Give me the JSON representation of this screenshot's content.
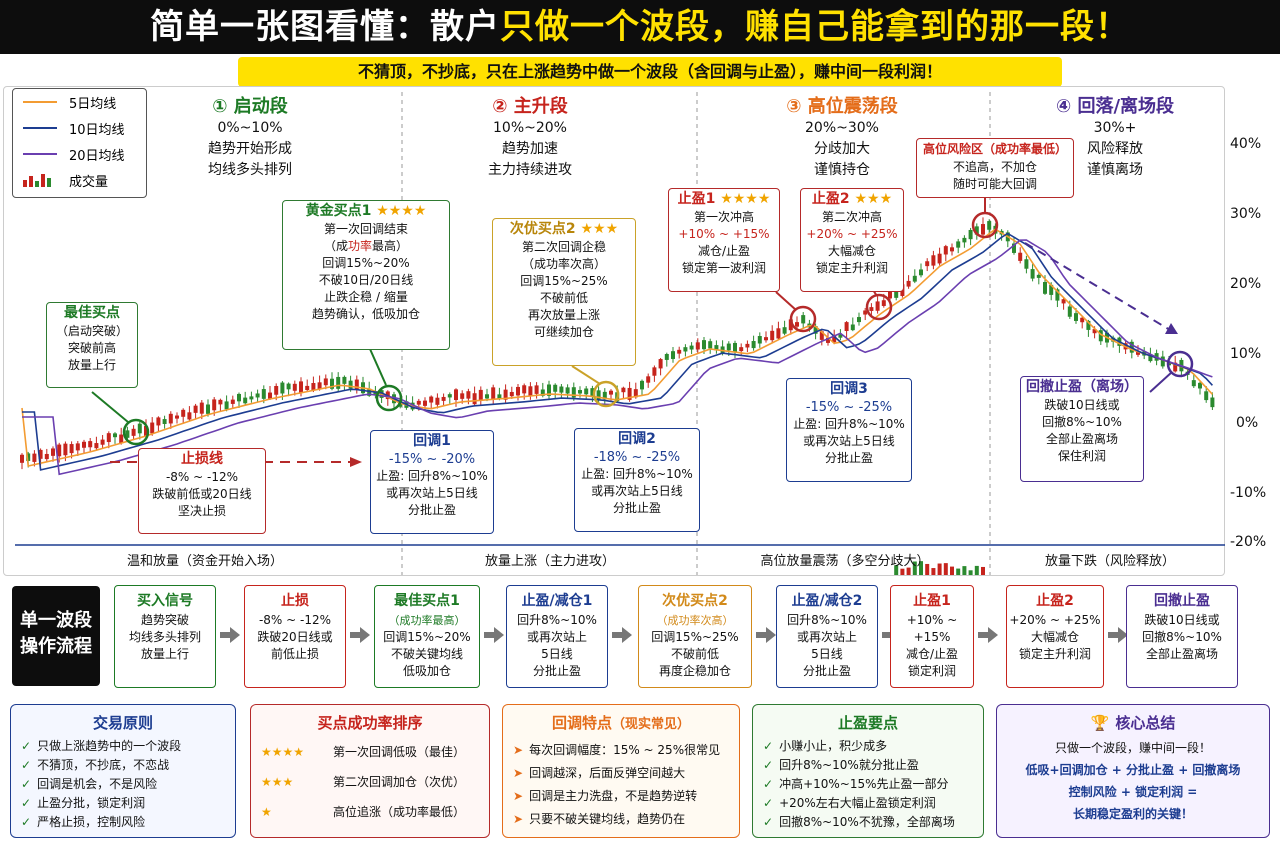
{
  "header": {
    "title_part1": "简单一张图看懂：散户",
    "title_part2": "只做一个波段，赚自己能拿到的那一段！"
  },
  "subtitle": "不猜顶，不抄底，只在上涨趋势中做一个波段（含回调与止盈），赚中间一段利润！",
  "legend": [
    {
      "label": "5日均线",
      "color": "#f39c32"
    },
    {
      "label": "10日均线",
      "color": "#1d3d91"
    },
    {
      "label": "20日均线",
      "color": "#6a3fb0"
    },
    {
      "label": "成交量",
      "icon": "volume-bars-icon"
    }
  ],
  "stages": [
    {
      "title": "① 启动段",
      "range": "0%~10%",
      "l1": "趋势开始形成",
      "l2": "均线多头排列",
      "color": "#1d7a25"
    },
    {
      "title": "② 主升段",
      "range": "10%~20%",
      "l1": "趋势加速",
      "l2": "主力持续进攻",
      "color": "#c6241d"
    },
    {
      "title": "③ 高位震荡段",
      "range": "20%~30%",
      "l1": "分歧加大",
      "l2": "谨慎持仓",
      "color": "#e46d1a"
    },
    {
      "title": "④ 回落/离场段",
      "range": "30%+",
      "l1": "风险释放",
      "l2": "谨慎离场",
      "color": "#4a2e91"
    }
  ],
  "y_axis": [
    "40%",
    "30%",
    "20%",
    "10%",
    "0%",
    "-10%",
    "-20%"
  ],
  "callouts": {
    "best_buy": {
      "title": "最佳买点",
      "l1": "（启动突破）",
      "l2": "突破前高",
      "l3": "放量上行"
    },
    "gold_buy": {
      "title": "黄金买点1",
      "stars": "★★★★",
      "l1": "第一次回调结束",
      "l2a": "（成",
      "l2b": "功率",
      "l2c": "最高）",
      "l3": "回调15%~20%",
      "l4": "不破10日/20日线",
      "l5": "止跌企稳 / 缩量",
      "l6": "趋势确认，低吸加仓"
    },
    "second_buy": {
      "title": "次优买点2",
      "stars": "★★★",
      "l1": "第二次回调企稳",
      "l2": "（成功率次高）",
      "l3": "回调15%~25%",
      "l4": "不破前低",
      "l5": "再次放量上涨",
      "l6": "可继续加仓"
    },
    "stop_loss": {
      "title": "止损线",
      "l1": "-8% ~ -12%",
      "l2": "跌破前低或20日线",
      "l3": "坚决止损"
    },
    "pullback1": {
      "title": "回调1",
      "l1": "-15% ~ -20%",
      "l2": "止盈: 回升8%~10%",
      "l3": "或再次站上5日线",
      "l4": "分批止盈"
    },
    "pullback2": {
      "title": "回调2",
      "l1": "-18% ~ -25%",
      "l2": "止盈: 回升8%~10%",
      "l3": "或再次站上5日线",
      "l4": "分批止盈"
    },
    "pullback3": {
      "title": "回调3",
      "l1": "-15% ~ -25%",
      "l2": "止盈: 回升8%~10%",
      "l3": "或再次站上5日线",
      "l4": "分批止盈"
    },
    "tp1": {
      "title": "止盈1",
      "stars": "★★★★",
      "l1": "第一次冲高",
      "l2": "+10% ~ +15%",
      "l3": "减仓/止盈",
      "l4": "锁定第一波利润"
    },
    "tp2": {
      "title": "止盈2",
      "stars": "★★★",
      "l1": "第二次冲高",
      "l2": "+20% ~ +25%",
      "l3": "大幅减仓",
      "l4": "锁定主升利润"
    },
    "risk": {
      "title": "高位风险区（成功率最低）",
      "l1": "不追高，不加仓",
      "l2": "随时可能大回调"
    },
    "exit": {
      "title": "回撤止盈（离场）",
      "l1": "跌破10日线或",
      "l2": "回撤8%~10%",
      "l3": "全部止盈离场",
      "l4": "保住利润"
    }
  },
  "bands": [
    "温和放量（资金开始入场）",
    "放量上涨（主力进攻）",
    "高位放量震荡（多空分歧大）",
    "放量下跌（风险释放）"
  ],
  "flow": {
    "label_l1": "单一波段",
    "label_l2": "操作流程",
    "steps": [
      {
        "title": "买入信号",
        "lines": [
          "趋势突破",
          "均线多头排列",
          "放量上行"
        ],
        "color": "#1d7a25"
      },
      {
        "title": "止损",
        "lines": [
          "-8% ~ -12%",
          "跌破20日线或",
          "前低止损"
        ],
        "color": "#c6241d"
      },
      {
        "title": "最佳买点1",
        "lines": [
          "（成功率最高）",
          "回调15%~20%",
          "不破关键均线",
          "低吸加仓"
        ],
        "color": "#1d7a25"
      },
      {
        "title": "止盈/减仓1",
        "lines": [
          "回升8%~10%",
          "或再次站上",
          "5日线",
          "分批止盈"
        ],
        "color": "#1d3d91"
      },
      {
        "title": "次优买点2",
        "lines": [
          "（成功率次高）",
          "回调15%~25%",
          "不破前低",
          "再度企稳加仓"
        ],
        "color": "#d28a1a"
      },
      {
        "title": "止盈/减仓2",
        "lines": [
          "回升8%~10%",
          "或再次站上",
          "5日线",
          "分批止盈"
        ],
        "color": "#1d3d91"
      },
      {
        "title": "止盈1",
        "lines": [
          "+10% ~ +15%",
          "减仓/止盈",
          "锁定利润"
        ],
        "color": "#c6241d"
      },
      {
        "title": "止盈2",
        "lines": [
          "+20% ~ +25%",
          "大幅减仓",
          "锁定主升利润"
        ],
        "color": "#c6241d"
      },
      {
        "title": "回撤止盈",
        "lines": [
          "跌破10日线或",
          "回撤8%~10%",
          "全部止盈离场"
        ],
        "color": "#4a2e91"
      }
    ]
  },
  "panels": {
    "principles": {
      "title": "交易原则",
      "items": [
        "只做上涨趋势中的一个波段",
        "不猜顶，不抄底，不恋战",
        "回调是机会，不是风险",
        "止盈分批，锁定利润",
        "严格止损，控制风险"
      ]
    },
    "ranking": {
      "title": "买点成功率排序",
      "items": [
        {
          "stars": "★★★★",
          "text": "第一次回调低吸（最佳）"
        },
        {
          "stars": "★★★",
          "text": "第二次回调加仓（次优）"
        },
        {
          "stars": "★",
          "text": "高位追涨（成功率最低）"
        }
      ]
    },
    "pullback": {
      "title": "回调特点",
      "tag": "（现实常见）",
      "items": [
        "每次回调幅度：15% ~ 25%很常见",
        "回调越深，后面反弹空间越大",
        "回调是主力洗盘，不是趋势逆转",
        "只要不破关键均线，趋势仍在"
      ]
    },
    "takeprofit": {
      "title": "止盈要点",
      "items": [
        "小赚小止，积少成多",
        "回升8%~10%就分批止盈",
        "冲高+10%~15%先止盈一部分",
        "+20%左右大幅止盈锁定利润",
        "回撤8%~10%不犹豫，全部离场"
      ]
    },
    "summary": {
      "title": "核心总结",
      "l1": "只做一个波段，赚中间一段！",
      "l2": "低吸+回调加仓 + 分批止盈 + 回撤离场",
      "l3": "控制风险 + 锁定利润 =",
      "l4": "长期稳定盈利的关键！"
    }
  }
}
